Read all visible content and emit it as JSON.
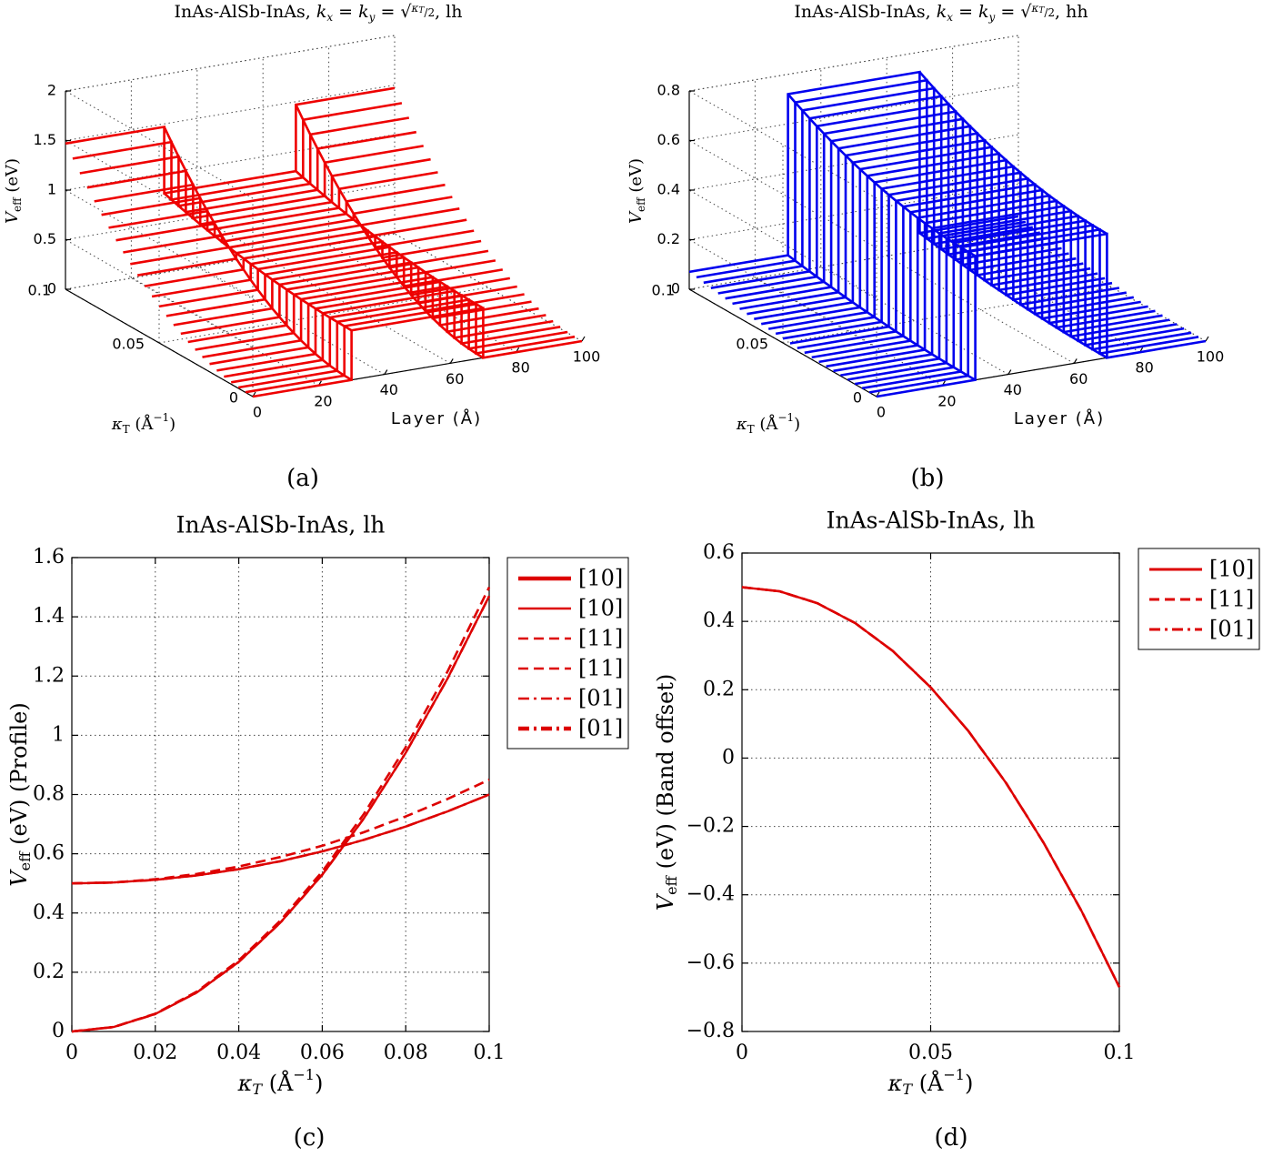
{
  "panels": [
    {
      "id": "a",
      "caption": "(a)",
      "chart_data": {
        "type": "3d-line",
        "title": "InAs-AlSb-InAs, k_x = k_y = √(κ_T/2), lh",
        "title_main": "InAs-AlSb-InAs, ",
        "title_tail": ", lh",
        "xlabel": "Layer (Å)",
        "ylabel": "κ_T (Å⁻¹)",
        "ylabel_symbol": "κ",
        "ylabel_sub": "T",
        "ylabel_unit": "(Å",
        "ylabel_exp": "−1",
        "ylabel_close": ")",
        "zlabel_symbol": "V",
        "zlabel_sub": "eff",
        "zlabel_unit": "(eV)",
        "x_range": [
          0,
          100
        ],
        "y_range": [
          0,
          0.1
        ],
        "z_range": [
          0,
          2
        ],
        "x_ticks": [
          "0",
          "20",
          "40",
          "60",
          "80",
          "100"
        ],
        "y_ticks": [
          "0",
          "0.05",
          "0.1"
        ],
        "z_ticks": [
          "0",
          "0.5",
          "1",
          "1.5",
          "2"
        ],
        "barrier_layers": [
          30,
          70
        ],
        "color": "#ee0000",
        "profile_at_kappa_0": {
          "wells": 0.0,
          "barrier": 0.5
        },
        "profile_at_kappa_0_1": {
          "wells": 1.47,
          "barrier": 0.8
        }
      }
    },
    {
      "id": "b",
      "caption": "(b)",
      "chart_data": {
        "type": "3d-line",
        "title": "InAs-AlSb-InAs, k_x = k_y = √(κ_T/2), hh",
        "title_main": "InAs-AlSb-InAs, ",
        "title_tail": ", hh",
        "xlabel": "Layer (Å)",
        "ylabel": "κ_T (Å⁻¹)",
        "ylabel_symbol": "κ",
        "ylabel_sub": "T",
        "ylabel_unit": "(Å",
        "ylabel_exp": "−1",
        "ylabel_close": ")",
        "zlabel_symbol": "V",
        "zlabel_sub": "eff",
        "zlabel_unit": "(eV)",
        "x_range": [
          0,
          100
        ],
        "y_range": [
          0,
          0.1
        ],
        "z_range": [
          0,
          0.8
        ],
        "x_ticks": [
          "0",
          "20",
          "40",
          "60",
          "80",
          "100"
        ],
        "y_ticks": [
          "0",
          "0.05",
          "0.1"
        ],
        "z_ticks": [
          "0",
          "0.2",
          "0.4",
          "0.6",
          "0.8"
        ],
        "barrier_layers": [
          30,
          70
        ],
        "color": "#0000ee",
        "profile_at_kappa_0": {
          "wells": 0.0,
          "barrier": 0.5
        },
        "profile_at_kappa_0_1": {
          "wells": 0.07,
          "barrier": 0.72
        }
      }
    },
    {
      "id": "c",
      "caption": "(c)",
      "chart_data": {
        "type": "line",
        "title": "InAs-AlSb-InAs, lh",
        "xlabel_symbol": "κ",
        "xlabel_sub": "T",
        "xlabel_unit": "(Å",
        "xlabel_exp": "−1",
        "xlabel_close": ")",
        "ylabel_symbol": "V",
        "ylabel_sub": "eff",
        "ylabel_unit": "(eV) (Profile)",
        "xlim": [
          0,
          0.1
        ],
        "ylim": [
          0,
          1.6
        ],
        "x_ticks": [
          "0",
          "0.02",
          "0.04",
          "0.06",
          "0.08",
          "0.1"
        ],
        "y_ticks": [
          "0",
          "0.2",
          "0.4",
          "0.6",
          "0.8",
          "1",
          "1.2",
          "1.4",
          "1.6"
        ],
        "x": [
          0,
          0.01,
          0.02,
          0.03,
          0.04,
          0.05,
          0.06,
          0.07,
          0.08,
          0.09,
          0.1
        ],
        "series": [
          {
            "name": "[10]",
            "style": "solid",
            "width": 4.5,
            "values": [
              0.5,
              0.503,
              0.512,
              0.527,
              0.548,
              0.575,
              0.608,
              0.647,
              0.692,
              0.743,
              0.8
            ]
          },
          {
            "name": "[10]",
            "style": "solid",
            "width": 2.5,
            "values": [
              0.0,
              0.015,
              0.059,
              0.132,
              0.235,
              0.368,
              0.529,
              0.72,
              0.941,
              1.191,
              1.47
            ]
          },
          {
            "name": "[11]",
            "style": "dashed",
            "width": 2.5,
            "values": [
              0.5,
              0.503,
              0.514,
              0.532,
              0.557,
              0.589,
              0.627,
              0.673,
              0.726,
              0.785,
              0.85
            ]
          },
          {
            "name": "[11]",
            "style": "dashed",
            "width": 2.5,
            "values": [
              0.0,
              0.015,
              0.06,
              0.135,
              0.24,
              0.375,
              0.54,
              0.735,
              0.96,
              1.215,
              1.5
            ]
          },
          {
            "name": "[01]",
            "style": "dashdot",
            "width": 2.5,
            "values": [
              0.5,
              0.503,
              0.512,
              0.527,
              0.548,
              0.575,
              0.608,
              0.647,
              0.692,
              0.743,
              0.8
            ]
          },
          {
            "name": "[01]",
            "style": "dashdot",
            "width": 4.5,
            "values": [
              0.0,
              0.015,
              0.059,
              0.132,
              0.235,
              0.368,
              0.529,
              0.72,
              0.941,
              1.191,
              1.47
            ]
          }
        ],
        "color": "#dd0000",
        "legend": "top-right outside"
      }
    },
    {
      "id": "d",
      "caption": "(d)",
      "chart_data": {
        "type": "line",
        "title": "InAs-AlSb-InAs, lh",
        "xlabel_symbol": "κ",
        "xlabel_sub": "T",
        "xlabel_unit": "(Å",
        "xlabel_exp": "−1",
        "xlabel_close": ")",
        "ylabel_symbol": "V",
        "ylabel_sub": "eff",
        "ylabel_unit": "(eV) (Band offset)",
        "xlim": [
          0,
          0.1
        ],
        "ylim": [
          -0.8,
          0.6
        ],
        "x_ticks": [
          "0",
          "0.05",
          "0.1"
        ],
        "y_ticks": [
          "−0.8",
          "−0.6",
          "−0.4",
          "−0.2",
          "0",
          "0.2",
          "0.4",
          "0.6"
        ],
        "x": [
          0,
          0.01,
          0.02,
          0.03,
          0.04,
          0.05,
          0.06,
          0.07,
          0.08,
          0.09,
          0.1
        ],
        "series": [
          {
            "name": "[10]",
            "style": "solid",
            "width": 3,
            "values": [
              0.5,
              0.488,
              0.453,
              0.395,
              0.313,
              0.207,
              0.079,
              -0.073,
              -0.249,
              -0.448,
              -0.67
            ]
          },
          {
            "name": "[11]",
            "style": "dashed",
            "width": 3,
            "values": [
              0.5,
              0.488,
              0.453,
              0.395,
              0.313,
              0.207,
              0.079,
              -0.073,
              -0.249,
              -0.448,
              -0.67
            ]
          },
          {
            "name": "[01]",
            "style": "dashdot",
            "width": 3,
            "values": [
              0.5,
              0.488,
              0.453,
              0.395,
              0.313,
              0.207,
              0.079,
              -0.073,
              -0.249,
              -0.448,
              -0.67
            ]
          }
        ],
        "color": "#dd0000",
        "legend": "top-right outside"
      }
    }
  ]
}
